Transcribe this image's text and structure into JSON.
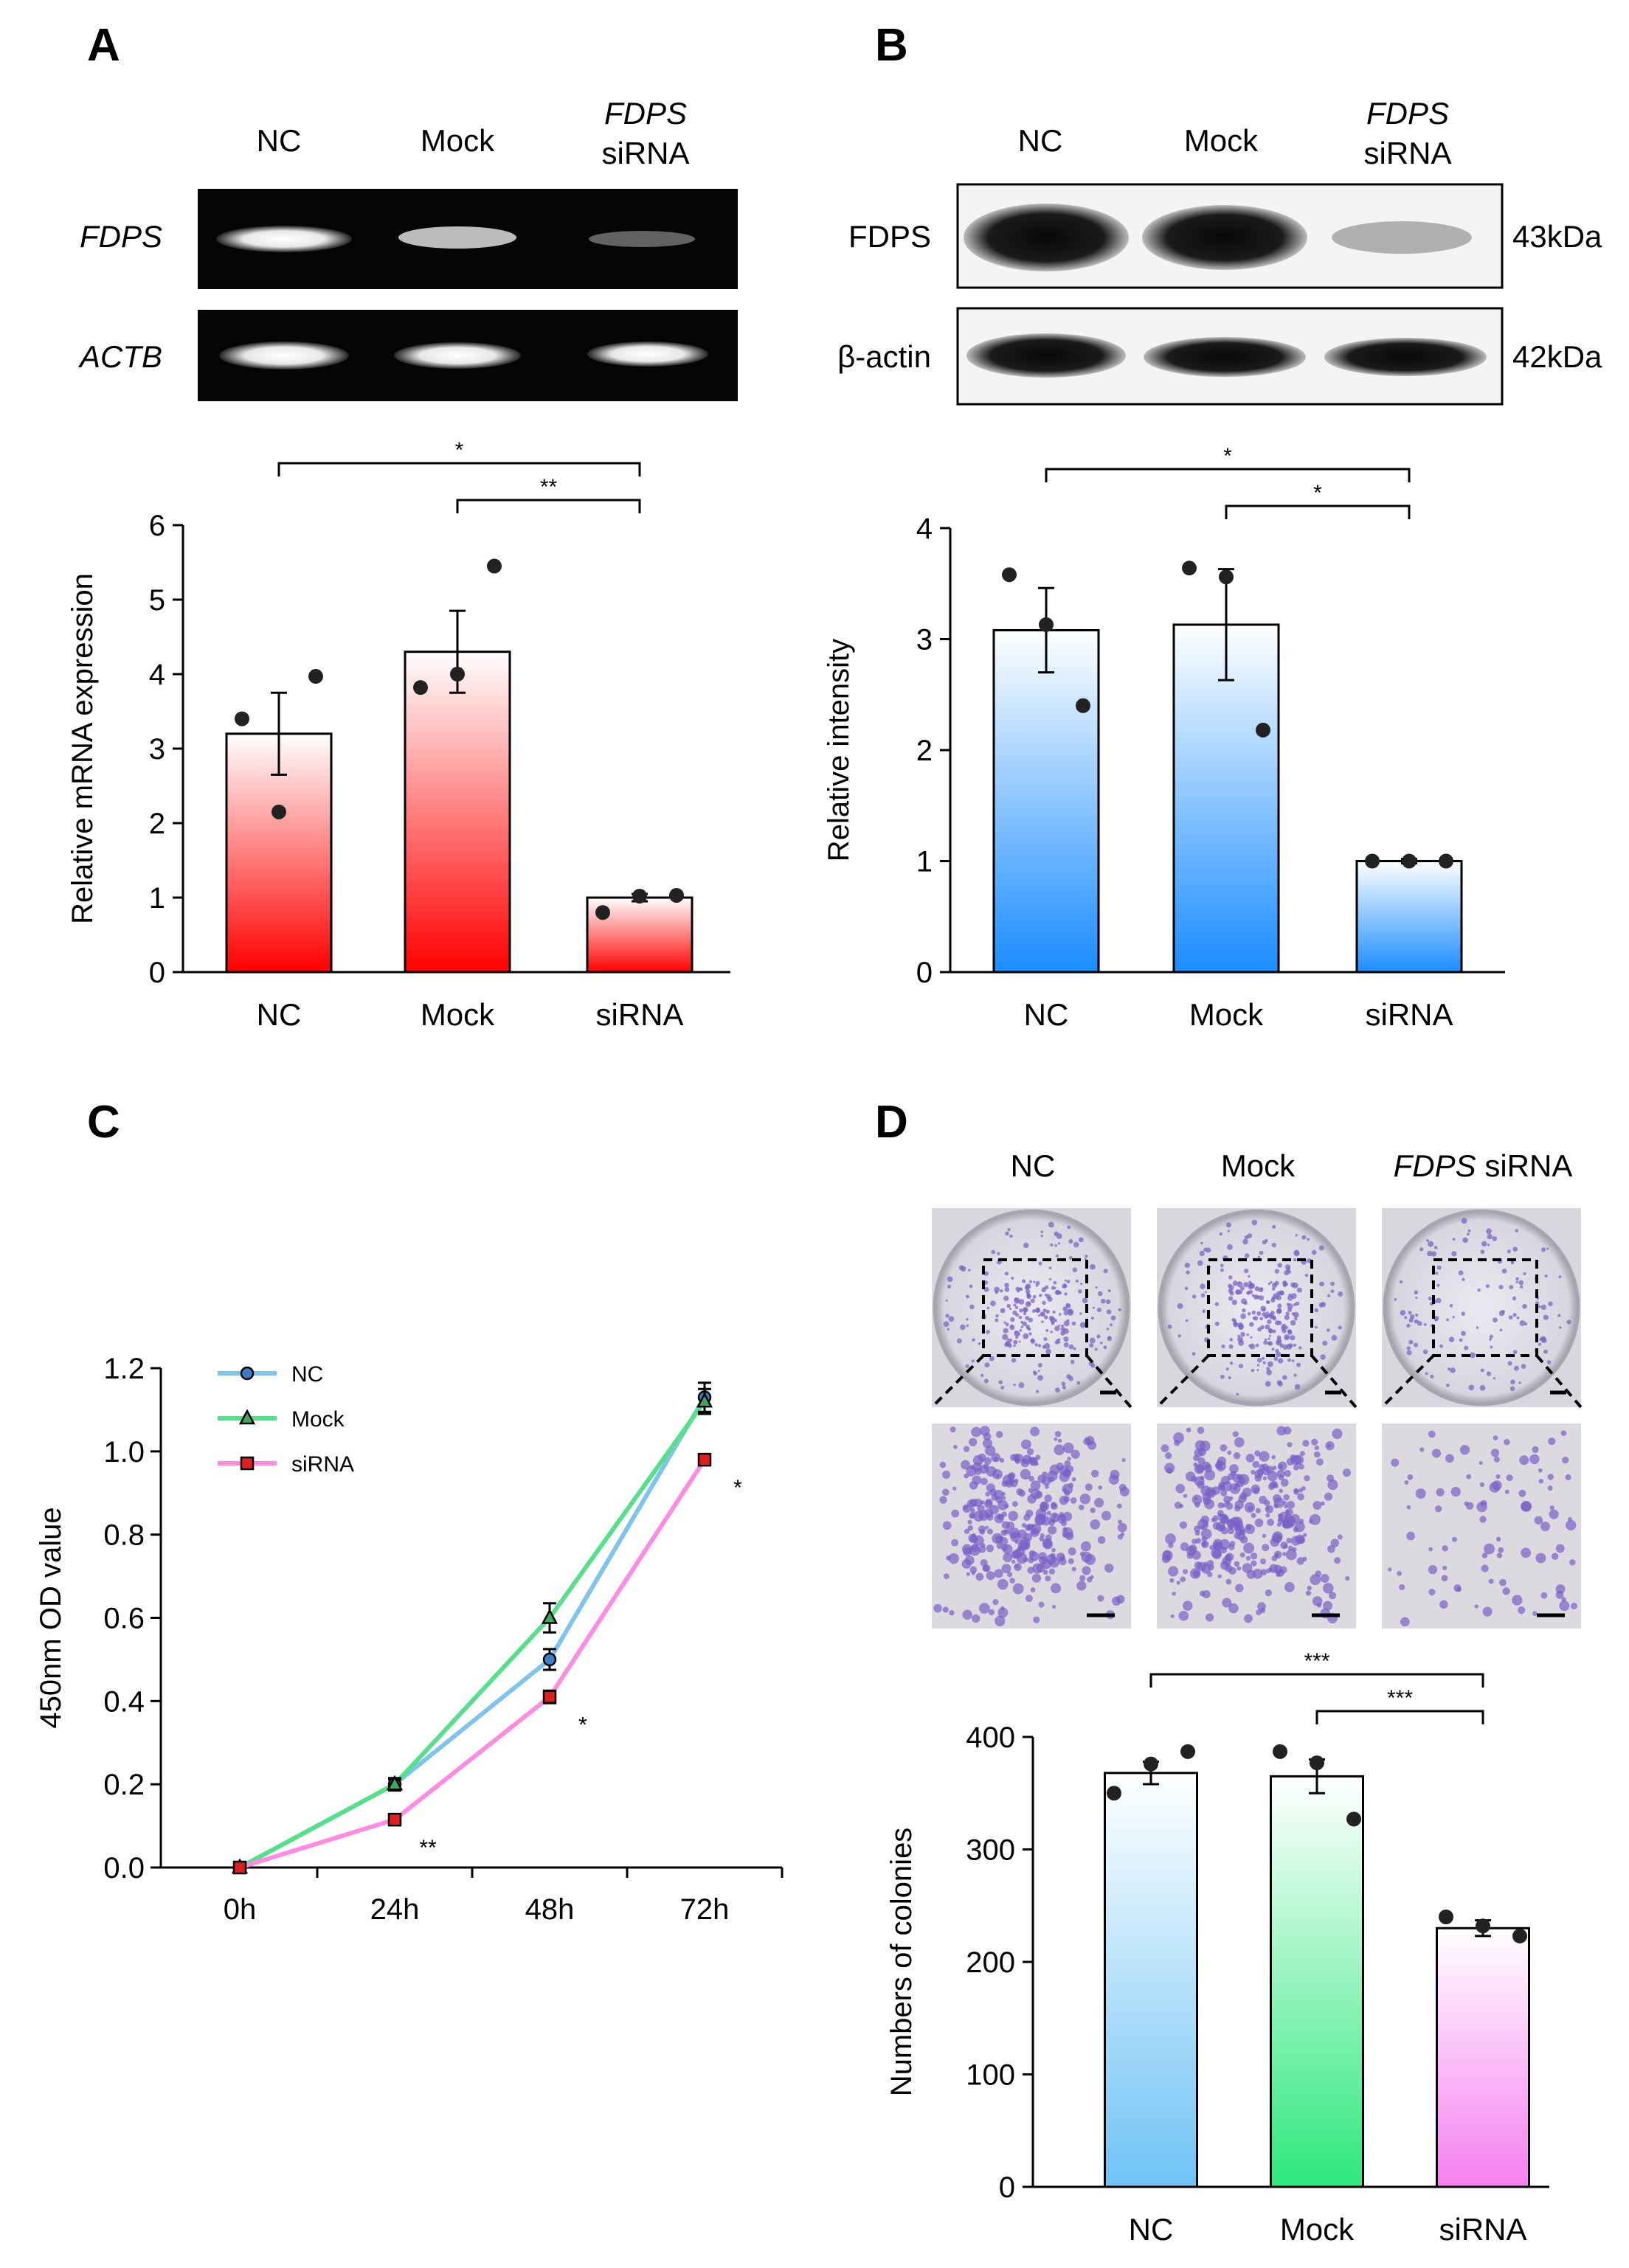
{
  "panel_letters": {
    "a": "A",
    "b": "B",
    "c": "C",
    "d": "D"
  },
  "panel_a": {
    "lane_labels": {
      "nc": "NC",
      "mock": "Mock",
      "sirna_gene": "FDPS",
      "sirna": "siRNA"
    },
    "gel_rows": {
      "fdps": "FDPS",
      "actb": "ACTB"
    }
  },
  "panel_b": {
    "lane_labels": {
      "nc": "NC",
      "mock": "Mock",
      "sirna_gene": "FDPS",
      "sirna": "siRNA"
    },
    "blot_rows": {
      "fdps": "FDPS",
      "actin": "β-actin"
    },
    "sizes": {
      "fdps": "43kDa",
      "actin": "42kDa"
    }
  },
  "panel_d": {
    "group_labels": {
      "nc": "NC",
      "mock": "Mock",
      "sirna_gene": "FDPS",
      "sirna": " siRNA"
    }
  },
  "chart_data": [
    {
      "id": "A",
      "type": "bar",
      "categories": [
        "NC",
        "Mock",
        "siRNA"
      ],
      "values": [
        3.2,
        4.3,
        1.0
      ],
      "errors": [
        0.55,
        0.55,
        0.05
      ],
      "points": [
        [
          3.4,
          2.15,
          3.97
        ],
        [
          3.82,
          4.0,
          5.45
        ],
        [
          0.8,
          1.02,
          1.03
        ]
      ],
      "ylabel": "Relative mRNA expression",
      "ylim": [
        0,
        6
      ],
      "yticks": [
        "0",
        "1",
        "2",
        "3",
        "4",
        "5",
        "6"
      ],
      "colors": {
        "top": "#ffffff",
        "bottom": "#ff0000"
      },
      "significance": [
        {
          "from": "NC",
          "to": "siRNA",
          "label": "*"
        },
        {
          "from": "Mock",
          "to": "siRNA",
          "label": "**"
        }
      ]
    },
    {
      "id": "B",
      "type": "bar",
      "categories": [
        "NC",
        "Mock",
        "siRNA"
      ],
      "values": [
        3.08,
        3.13,
        1.0
      ],
      "errors": [
        0.38,
        0.5,
        0.02
      ],
      "points": [
        [
          3.58,
          3.13,
          2.4
        ],
        [
          3.64,
          3.56,
          2.18
        ],
        [
          1.0,
          1.0,
          1.0
        ]
      ],
      "ylabel": "Relative intensity",
      "ylim": [
        0,
        4
      ],
      "yticks": [
        "0",
        "1",
        "2",
        "3",
        "4"
      ],
      "colors": {
        "top": "#ffffff",
        "bottom": "#1a8cff"
      },
      "significance": [
        {
          "from": "NC",
          "to": "siRNA",
          "label": "*"
        },
        {
          "from": "Mock",
          "to": "siRNA",
          "label": "*"
        }
      ]
    },
    {
      "id": "C",
      "type": "line",
      "x": [
        "0h",
        "24h",
        "48h",
        "72h"
      ],
      "ylabel": "450nm OD value",
      "ylim": [
        0,
        1.2
      ],
      "yticks": [
        "0.0",
        "0.2",
        "0.4",
        "0.6",
        "0.8",
        "1.0",
        "1.2"
      ],
      "series": [
        {
          "name": "NC",
          "color": "#7fc4f0",
          "marker": "circle",
          "marker_color": "#3a7ec8",
          "values": [
            0,
            0.2,
            0.5,
            1.13
          ],
          "errors": [
            0,
            0.012,
            0.025,
            0.035
          ]
        },
        {
          "name": "Mock",
          "color": "#55e08a",
          "marker": "triangle",
          "marker_color": "#3daa5a",
          "values": [
            0,
            0.2,
            0.6,
            1.12
          ],
          "errors": [
            0,
            0.015,
            0.035,
            0.03
          ]
        },
        {
          "name": "siRNA",
          "color": "#ff8ce0",
          "marker": "square",
          "marker_color": "#e02020",
          "values": [
            0,
            0.115,
            0.41,
            0.98
          ],
          "errors": [
            0,
            0.01,
            0.015,
            0.01
          ]
        }
      ],
      "annotations": [
        {
          "x": "24h",
          "label": "**"
        },
        {
          "x": "48h",
          "label": "*"
        },
        {
          "x": "72h",
          "label": "*"
        }
      ]
    },
    {
      "id": "D",
      "type": "bar",
      "categories": [
        "NC",
        "Mock",
        "siRNA"
      ],
      "values": [
        368,
        365,
        230
      ],
      "errors": [
        10,
        15,
        7
      ],
      "points": [
        [
          350,
          376,
          387
        ],
        [
          387,
          377,
          327
        ],
        [
          240,
          232,
          223
        ]
      ],
      "ylabel": "Numbers of colonies",
      "ylim": [
        0,
        400
      ],
      "yticks": [
        "0",
        "100",
        "200",
        "300",
        "400"
      ],
      "bar_colors": [
        {
          "top": "#ffffff",
          "bottom": "#6fc3f5"
        },
        {
          "top": "#ffffff",
          "bottom": "#2ee87c"
        },
        {
          "top": "#ffffff",
          "bottom": "#f57ff0"
        }
      ],
      "significance": [
        {
          "from": "NC",
          "to": "siRNA",
          "label": "***"
        },
        {
          "from": "Mock",
          "to": "siRNA",
          "label": "***"
        }
      ]
    }
  ]
}
